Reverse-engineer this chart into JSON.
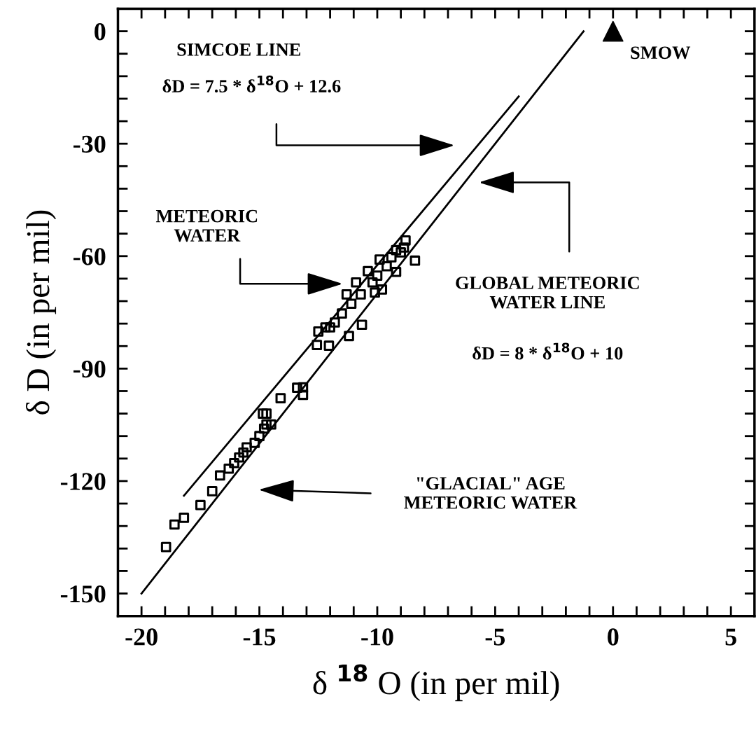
{
  "chart_data": {
    "type": "scatter",
    "xlabel": "δ $^{18}$ O (in per mil)",
    "ylabel": "δ D (in per mil)",
    "xlim": [
      -21,
      6
    ],
    "ylim": [
      -156,
      6
    ],
    "xticks": [
      -20,
      {
        "value": -19,
        "label": null
      },
      {
        "value": -18,
        "label": null
      },
      {
        "value": -17,
        "label": null
      },
      {
        "value": -16,
        "label": null
      },
      -15,
      {
        "value": -14,
        "label": null
      },
      {
        "value": -13,
        "label": null
      },
      {
        "value": -12,
        "label": null
      },
      {
        "value": -11,
        "label": null
      },
      -10,
      {
        "value": -9,
        "label": null
      },
      {
        "value": -8,
        "label": null
      },
      {
        "value": -7,
        "label": null
      },
      {
        "value": -6,
        "label": null
      },
      -5,
      {
        "value": -4,
        "label": null
      },
      {
        "value": -3,
        "label": null
      },
      {
        "value": -2,
        "label": null
      },
      {
        "value": -1,
        "label": null
      },
      0,
      {
        "value": 1,
        "label": null
      },
      {
        "value": 2,
        "label": null
      },
      {
        "value": 3,
        "label": null
      },
      {
        "value": 4,
        "label": null
      },
      5
    ],
    "yticks": [
      -150,
      {
        "value": -144,
        "label": null
      },
      {
        "value": -138,
        "label": null
      },
      {
        "value": -132,
        "label": null
      },
      {
        "value": -126,
        "label": null
      },
      -120,
      {
        "value": -114,
        "label": null
      },
      {
        "value": -108,
        "label": null
      },
      {
        "value": -102,
        "label": null
      },
      {
        "value": -96,
        "label": null
      },
      -90,
      {
        "value": -84,
        "label": null
      },
      {
        "value": -78,
        "label": null
      },
      {
        "value": -72,
        "label": null
      },
      {
        "value": -66,
        "label": null
      },
      -60,
      {
        "value": -54,
        "label": null
      },
      {
        "value": -48,
        "label": null
      },
      {
        "value": -42,
        "label": null
      },
      {
        "value": -36,
        "label": null
      },
      -30,
      {
        "value": -24,
        "label": null
      },
      {
        "value": -18,
        "label": null
      },
      {
        "value": -12,
        "label": null
      },
      {
        "value": -6,
        "label": null
      },
      0
    ],
    "grid": false,
    "legend": false,
    "series": [
      {
        "type": "line",
        "color": "#000000",
        "line_style": "solid",
        "marker": "none",
        "x": [
          -20,
          -1.25
        ],
        "values": [
          -150,
          0
        ]
      },
      {
        "type": "line",
        "color": "#000000",
        "line_style": "solid",
        "marker": "none",
        "x": [
          -18.2,
          -4.0
        ],
        "values": [
          -123.9,
          -17.4
        ]
      },
      {
        "type": "scatter",
        "color": "#000000",
        "marker": "square",
        "x": [
          -18.96,
          -18.6,
          -18.2,
          -17.5,
          -17.0,
          -16.67,
          -16.3,
          -16.07,
          -15.86,
          -15.68,
          -15.54,
          -15.2,
          -15.0,
          -14.8,
          -14.7,
          -14.85,
          -14.7,
          -14.5,
          -14.1,
          -13.4,
          -13.15,
          -13.15,
          -12.56,
          -12.05,
          -12.0,
          -11.2,
          -10.65,
          -11.3,
          -10.9,
          -10.4,
          -9.9,
          -9.2,
          -8.8,
          -8.87,
          -8.4,
          -9.2,
          -9.8,
          -11.5,
          -11.8,
          -12.2,
          -12.5,
          -11.1,
          -10.7,
          -10.2,
          -10.0,
          -9.6,
          -9.4,
          -9.0,
          -10.1
        ],
        "values": [
          -137.6,
          -131.6,
          -129.8,
          -126.4,
          -122.7,
          -118.5,
          -116.7,
          -115.2,
          -113.7,
          -112.4,
          -111.0,
          -109.8,
          -108.0,
          -106.0,
          -104.9,
          -102.0,
          -102.0,
          -104.9,
          -97.9,
          -95.1,
          -97.0,
          -95.0,
          -83.7,
          -83.9,
          -79.0,
          -81.3,
          -78.3,
          -70.2,
          -67.0,
          -64.0,
          -60.9,
          -64.2,
          -55.8,
          -57.7,
          -61.2,
          -58.4,
          -68.9,
          -75.3,
          -77.7,
          -79.0,
          -80.1,
          -72.7,
          -70.2,
          -67.0,
          -65.2,
          -62.7,
          -60.3,
          -59.0,
          -69.7
        ]
      },
      {
        "type": "scatter",
        "color": "#000000",
        "marker": "triangle",
        "x": [
          0
        ],
        "values": [
          0
        ]
      }
    ],
    "annotations": [
      "SIMCOE LINE",
      "δD = 7.5 * δ$^{18}$O + 12.6",
      "METEORIC\nWATER",
      "GLOBAL METEORIC\nWATER LINE",
      "δD = 8 * δ$^{18}$O + 10",
      "\"GLACIAL\" AGE\nMETEORIC WATER",
      "SMOW"
    ]
  }
}
